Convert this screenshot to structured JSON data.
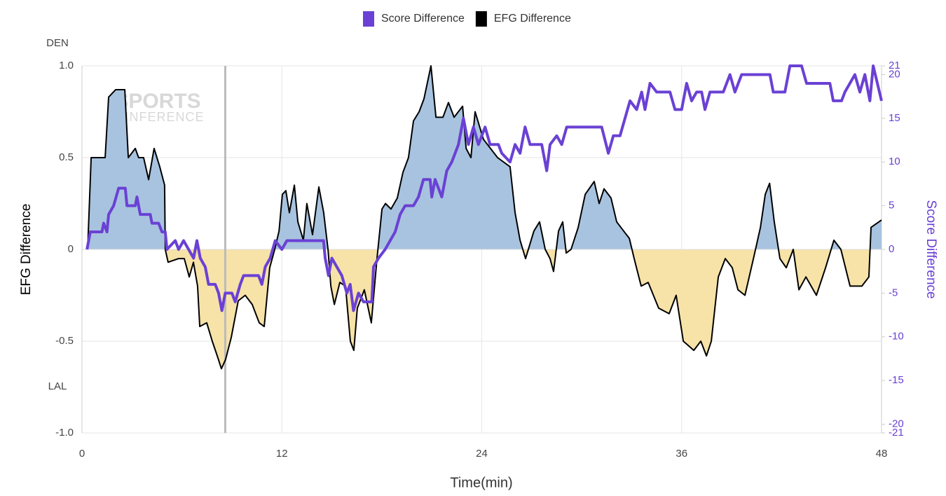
{
  "chart_data": {
    "type": "line",
    "xlabel": "Time(min)",
    "ylabel": "EFG Difference",
    "y2label": "Score Difference",
    "annotations": [
      "DEN",
      "LAL"
    ],
    "watermark": [
      "SPORTS",
      "INFERENCE"
    ],
    "reference_line_x": 8.6,
    "xlim": [
      0,
      48
    ],
    "xticks": [
      0,
      12,
      24,
      36,
      48
    ],
    "ylim": [
      -1,
      1
    ],
    "yticks": [
      {
        "value": -1,
        "label": "-1.0"
      },
      -0.5,
      0,
      0.5,
      {
        "value": 1,
        "label": "1.0"
      }
    ],
    "y2lim": [
      -21,
      21
    ],
    "y2ticks": [
      -21,
      -20,
      -15,
      -10,
      -5,
      0,
      5,
      10,
      15,
      20,
      21
    ],
    "grid": true,
    "legend": "top",
    "series": [
      {
        "name": "Score Difference",
        "color": "#6a41d4",
        "axis": "y2",
        "x": [
          0.3,
          0.5,
          1.2,
          1.3,
          1.5,
          1.6,
          1.9,
          2.2,
          2.6,
          2.7,
          3.2,
          3.3,
          3.5,
          4.1,
          4.2,
          4.6,
          4.8,
          5.0,
          5.1,
          5.6,
          5.8,
          6.1,
          6.4,
          6.7,
          6.9,
          7.1,
          7.4,
          7.6,
          8.0,
          8.2,
          8.4,
          8.6,
          9.0,
          9.2,
          9.5,
          9.7,
          10.6,
          10.8,
          11.0,
          11.3,
          11.6,
          12.0,
          12.3,
          14.5,
          14.6,
          14.8,
          15.0,
          15.3,
          15.6,
          15.9,
          16.1,
          16.3,
          16.6,
          16.9,
          17.4,
          17.5,
          17.8,
          18.2,
          18.5,
          18.8,
          19.1,
          19.4,
          19.9,
          20.2,
          20.5,
          20.9,
          21.0,
          21.2,
          21.6,
          21.9,
          22.2,
          22.6,
          22.9,
          23.2,
          23.5,
          23.8,
          24.2,
          24.5,
          25.0,
          25.2,
          25.7,
          26.0,
          26.3,
          26.6,
          26.9,
          27.6,
          27.9,
          28.1,
          28.5,
          28.8,
          29.1,
          31.2,
          31.6,
          31.9,
          32.3,
          32.6,
          32.9,
          33.3,
          33.6,
          33.8,
          34.1,
          34.5,
          35.3,
          35.6,
          36.0,
          36.3,
          36.6,
          36.9,
          37.2,
          37.4,
          37.7,
          38.2,
          38.5,
          38.9,
          39.2,
          39.6,
          41.3,
          41.5,
          42.2,
          42.5,
          43.2,
          43.5,
          44.9,
          45.1,
          45.6,
          45.8,
          46.1,
          46.4,
          46.7,
          47.0,
          47.3,
          47.5,
          48.0
        ],
        "values": [
          0,
          2,
          2,
          3,
          2,
          4,
          5,
          7,
          7,
          5,
          5,
          6,
          4,
          4,
          3,
          3,
          2,
          2,
          0,
          1,
          0,
          1,
          0,
          -1,
          1,
          -1,
          -2,
          -4,
          -4,
          -5,
          -7,
          -5,
          -5,
          -6,
          -4,
          -3,
          -3,
          -4,
          -2,
          -1,
          1,
          0,
          1,
          1,
          -1,
          -3,
          -1,
          -2,
          -3,
          -5,
          -4,
          -7,
          -5,
          -6,
          -6,
          -2,
          -1,
          0,
          1,
          2,
          4,
          5,
          5,
          6,
          8,
          8,
          6,
          8,
          6,
          9,
          10,
          12,
          15,
          12,
          14,
          12,
          14,
          12,
          12,
          11,
          10,
          12,
          11,
          14,
          12,
          12,
          9,
          12,
          13,
          12,
          14,
          14,
          11,
          13,
          13,
          15,
          17,
          16,
          18,
          16,
          19,
          18,
          18,
          16,
          16,
          19,
          17,
          18,
          18,
          16,
          18,
          18,
          18,
          20,
          18,
          20,
          20,
          18,
          18,
          21,
          21,
          19,
          19,
          17,
          17,
          18,
          19,
          20,
          18,
          20,
          17,
          21,
          17
        ]
      },
      {
        "name": "EFG Difference",
        "color": "#000000",
        "axis": "y",
        "x": [
          0.34,
          0.55,
          1.39,
          1.6,
          2.02,
          2.57,
          2.78,
          3.2,
          3.4,
          3.7,
          4.0,
          4.33,
          4.67,
          4.96,
          5.0,
          5.17,
          5.8,
          6.14,
          6.44,
          6.69,
          6.94,
          7.07,
          7.49,
          7.82,
          8.12,
          8.37,
          8.62,
          8.96,
          9.38,
          9.8,
          10.22,
          10.64,
          10.94,
          11.27,
          11.57,
          11.83,
          12.03,
          12.24,
          12.45,
          12.75,
          12.96,
          13.29,
          13.5,
          13.84,
          14.22,
          14.51,
          14.77,
          14.94,
          15.15,
          15.48,
          15.82,
          16.11,
          16.32,
          16.53,
          16.95,
          17.37,
          17.71,
          18.01,
          18.22,
          18.55,
          18.93,
          19.27,
          19.6,
          19.9,
          20.24,
          20.53,
          20.95,
          21.25,
          21.67,
          22.0,
          22.34,
          22.85,
          23.06,
          23.35,
          23.6,
          24.1,
          24.95,
          25.7,
          26.0,
          26.3,
          26.63,
          27.13,
          27.47,
          27.81,
          28.1,
          28.31,
          28.61,
          28.86,
          29.07,
          29.36,
          29.79,
          30.21,
          30.75,
          31.05,
          31.34,
          31.76,
          32.1,
          32.52,
          32.86,
          33.15,
          33.57,
          33.99,
          34.62,
          35.25,
          35.67,
          36.1,
          36.73,
          37.15,
          37.49,
          37.78,
          38.2,
          38.62,
          39.04,
          39.38,
          39.8,
          40.31,
          40.73,
          41.02,
          41.28,
          41.56,
          41.9,
          42.28,
          42.7,
          43.04,
          43.46,
          44.09,
          44.64,
          45.14,
          45.56,
          46.11,
          46.82,
          47.24,
          47.37,
          48.0
        ],
        "values": [
          0,
          0.5,
          0.5,
          0.83,
          0.87,
          0.87,
          0.5,
          0.55,
          0.5,
          0.5,
          0.38,
          0.55,
          0.45,
          0.35,
          0,
          -0.07,
          -0.05,
          -0.05,
          -0.15,
          -0.07,
          -0.2,
          -0.42,
          -0.4,
          -0.5,
          -0.58,
          -0.65,
          -0.6,
          -0.48,
          -0.28,
          -0.25,
          -0.3,
          -0.4,
          -0.42,
          -0.1,
          0,
          0.1,
          0.3,
          0.32,
          0.2,
          0.35,
          0.15,
          0.05,
          0.25,
          0.08,
          0.34,
          0.2,
          0,
          -0.2,
          -0.3,
          -0.18,
          -0.2,
          -0.5,
          -0.55,
          -0.32,
          -0.22,
          -0.4,
          -0.05,
          0.22,
          0.25,
          0.22,
          0.28,
          0.42,
          0.5,
          0.7,
          0.75,
          0.82,
          1.0,
          0.72,
          0.72,
          0.8,
          0.72,
          0.78,
          0.55,
          0.5,
          0.75,
          0.6,
          0.5,
          0.45,
          0.2,
          0.05,
          -0.05,
          0.1,
          0.15,
          0,
          -0.05,
          -0.12,
          0.1,
          0.15,
          -0.02,
          0,
          0.12,
          0.3,
          0.37,
          0.25,
          0.33,
          0.28,
          0.15,
          0.1,
          0.06,
          -0.05,
          -0.2,
          -0.18,
          -0.32,
          -0.35,
          -0.25,
          -0.5,
          -0.55,
          -0.5,
          -0.58,
          -0.5,
          -0.15,
          -0.05,
          -0.1,
          -0.22,
          -0.25,
          -0.05,
          0.12,
          0.3,
          0.36,
          0.15,
          -0.05,
          -0.1,
          0,
          -0.22,
          -0.15,
          -0.25,
          -0.1,
          0.05,
          0,
          -0.2,
          -0.2,
          -0.15,
          0.12,
          0.16
        ]
      }
    ]
  }
}
